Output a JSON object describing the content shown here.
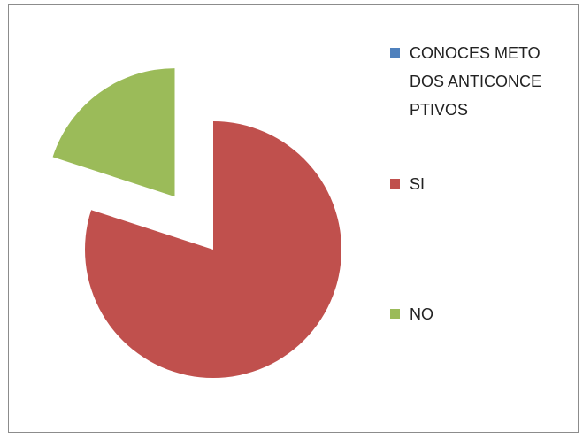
{
  "chart_data": {
    "type": "pie",
    "categories": [
      "CONOCES METODOS ANTICONCEPTIVOS",
      "SI",
      "NO"
    ],
    "values": [
      0,
      80,
      20
    ],
    "colors": [
      "#4f81bd",
      "#c0504d",
      "#9bbb59"
    ],
    "exploded": [
      false,
      false,
      true
    ],
    "legend": "right"
  }
}
